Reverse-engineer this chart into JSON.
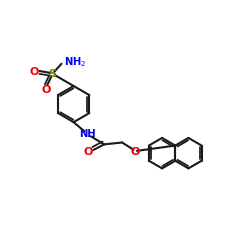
{
  "bg_color": "#ffffff",
  "bond_color": "#1a1a1a",
  "N_color": "#0000ee",
  "O_color": "#ee0000",
  "S_color": "#808000",
  "lw": 1.5,
  "figsize": [
    2.5,
    2.5
  ],
  "dpi": 100,
  "xlim": [
    -1,
    12
  ],
  "ylim": [
    -1,
    10
  ]
}
